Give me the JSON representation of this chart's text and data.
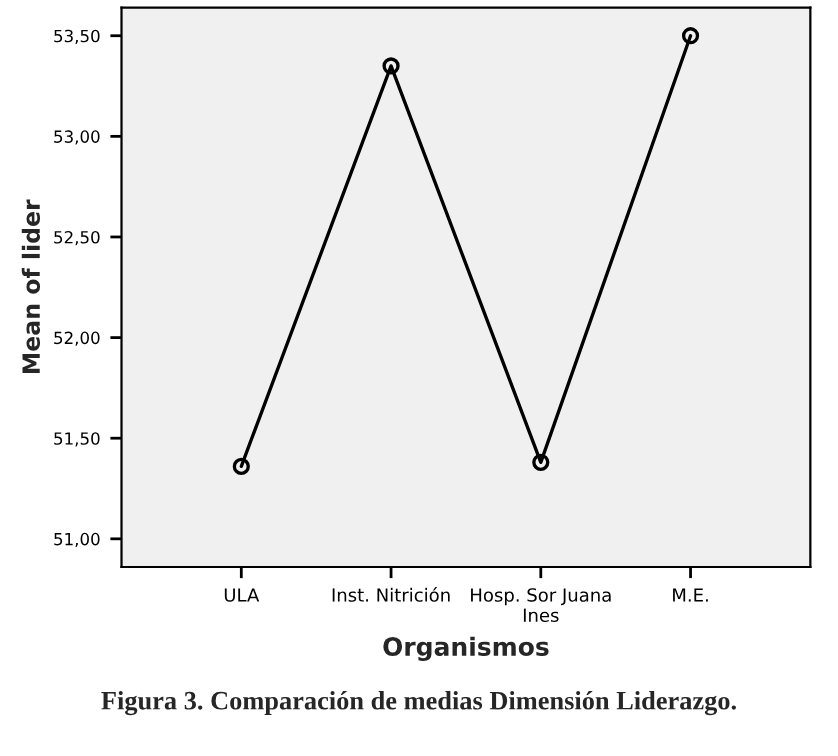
{
  "chart_data": {
    "type": "line",
    "categories": [
      "ULA",
      "Inst. Nitrición",
      "Hosp. Sor Juana\nInes",
      "M.E."
    ],
    "series": [
      {
        "color": "#000000",
        "values": [
          51.36,
          53.35,
          51.38,
          53.5
        ]
      }
    ],
    "xlabel": "Organismos",
    "ylabel": "Mean of lider",
    "ylim": [
      50.86,
      53.64
    ],
    "yticks": [
      {
        "value": 51.0,
        "label": "51,00"
      },
      {
        "value": 51.5,
        "label": "51,50"
      },
      {
        "value": 52.0,
        "label": "52,00"
      },
      {
        "value": 52.5,
        "label": "52,50"
      },
      {
        "value": 53.0,
        "label": "53,00"
      },
      {
        "value": 53.5,
        "label": "53,50"
      }
    ],
    "marker": "circle",
    "line_style": "solid",
    "grid": false,
    "legend": false,
    "annotations": [
      "Figura 3. Comparación de medias Dimensión Liderazgo."
    ]
  }
}
